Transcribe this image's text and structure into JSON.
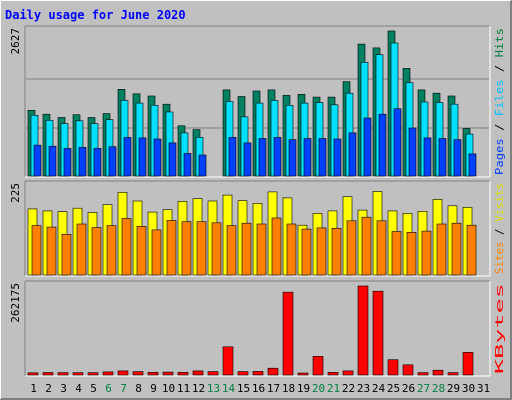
{
  "chart_data": [
    {
      "type": "bar",
      "title": "Daily usage for June 2020",
      "categories": [
        "1",
        "2",
        "3",
        "4",
        "5",
        "6",
        "7",
        "8",
        "9",
        "10",
        "11",
        "12",
        "13",
        "14",
        "15",
        "16",
        "17",
        "18",
        "19",
        "20",
        "21",
        "22",
        "23",
        "24",
        "25",
        "26",
        "27",
        "28",
        "29",
        "30",
        "31"
      ],
      "weekend_days": [
        "6",
        "7",
        "13",
        "14",
        "20",
        "21",
        "27",
        "28"
      ],
      "ymax_label": "2627",
      "ylim": [
        0,
        2627
      ],
      "right_axis": {
        "parts": [
          "Pages",
          "Files",
          "Hits"
        ],
        "separator": " / "
      },
      "series": [
        {
          "name": "Hits",
          "color": "#008040",
          "values": [
            1190,
            1120,
            1060,
            1110,
            1060,
            1130,
            1570,
            1490,
            1450,
            1300,
            910,
            840,
            0,
            1560,
            1440,
            1540,
            1560,
            1460,
            1480,
            1430,
            1430,
            1710,
            2390,
            2320,
            2627,
            1950,
            1560,
            1500,
            1450,
            860,
            0
          ]
        },
        {
          "name": "Files",
          "color": "#00E0FF",
          "values": [
            1100,
            1010,
            950,
            1000,
            950,
            1020,
            1370,
            1320,
            1280,
            1160,
            780,
            700,
            0,
            1350,
            1070,
            1320,
            1370,
            1280,
            1320,
            1330,
            1290,
            1500,
            2060,
            2200,
            2410,
            1690,
            1340,
            1330,
            1300,
            760,
            0
          ]
        },
        {
          "name": "Pages",
          "color": "#0040FF",
          "values": [
            560,
            540,
            500,
            520,
            500,
            530,
            700,
            690,
            670,
            600,
            410,
            380,
            0,
            700,
            600,
            680,
            700,
            660,
            680,
            680,
            670,
            780,
            1050,
            1120,
            1220,
            870,
            690,
            680,
            660,
            400,
            0
          ]
        }
      ]
    },
    {
      "type": "bar",
      "ymax_label": "225",
      "ylim": [
        0,
        225
      ],
      "right_axis": {
        "parts": [
          "Sites",
          "Visits"
        ],
        "separator": " / "
      },
      "series": [
        {
          "name": "Visits",
          "color": "#FFFF00",
          "values": [
            167,
            162,
            160,
            169,
            158,
            178,
            209,
            187,
            159,
            165,
            186,
            193,
            187,
            202,
            188,
            181,
            210,
            195,
            126,
            156,
            162,
            198,
            164,
            211,
            162,
            156,
            161,
            191,
            175,
            171,
            0
          ]
        },
        {
          "name": "Sites",
          "color": "#FF8000",
          "values": [
            125,
            121,
            103,
            129,
            120,
            125,
            143,
            123,
            114,
            138,
            135,
            135,
            132,
            125,
            131,
            129,
            144,
            129,
            116,
            119,
            118,
            137,
            146,
            137,
            110,
            108,
            111,
            129,
            131,
            126,
            0
          ]
        }
      ]
    },
    {
      "type": "bar",
      "ymax_label": "262175",
      "ylim": [
        0,
        262175
      ],
      "right_axis": {
        "parts": [
          "KBytes"
        ],
        "separator": ""
      },
      "series": [
        {
          "name": "KBytes",
          "color": "#FF0000",
          "values": [
            6500,
            7500,
            7000,
            7200,
            6800,
            9000,
            12000,
            10000,
            8000,
            8500,
            8000,
            12000,
            10000,
            83000,
            10000,
            10500,
            20000,
            244000,
            6000,
            55000,
            8000,
            12000,
            262175,
            247000,
            45000,
            30000,
            7000,
            14000,
            7000,
            67000,
            0
          ]
        }
      ]
    }
  ]
}
